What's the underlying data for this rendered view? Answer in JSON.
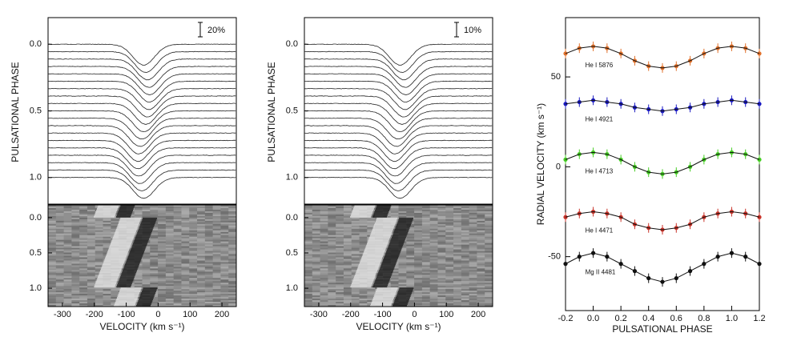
{
  "chart_data": [
    {
      "type": "profiles",
      "scale_label": "20%",
      "ylabel": "PULSATIONAL PHASE",
      "ylim": [
        1.2,
        -0.2
      ],
      "yticks": [
        {
          "value": 0,
          "label": "0.0"
        },
        0.5,
        {
          "value": 1,
          "label": "1.0"
        }
      ],
      "dyn_ylim": [
        1.26,
        -0.18
      ],
      "dyn_yticks": [
        {
          "value": 0,
          "label": "0.0"
        },
        0.5,
        {
          "value": 1,
          "label": "1.0"
        }
      ],
      "xlabel": "VELOCITY (km s⁻¹)",
      "xlim": [
        -345,
        245
      ],
      "xticks": [
        -300,
        -200,
        -100,
        0,
        100,
        200
      ]
    },
    {
      "type": "profiles",
      "scale_label": "10%",
      "ylabel": "PULSATIONAL PHASE",
      "ylim": [
        1.2,
        -0.2
      ],
      "yticks": [
        {
          "value": 0,
          "label": "0.0"
        },
        0.5,
        {
          "value": 1,
          "label": "1.0"
        }
      ],
      "dyn_ylim": [
        1.26,
        -0.18
      ],
      "dyn_yticks": [
        {
          "value": 0,
          "label": "0.0"
        },
        0.5,
        {
          "value": 1,
          "label": "1.0"
        }
      ],
      "xlabel": "VELOCITY (km s⁻¹)",
      "xlim": [
        -345,
        245
      ],
      "xticks": [
        -300,
        -200,
        -100,
        0,
        100,
        200
      ]
    },
    {
      "type": "line",
      "xlabel": "PULSATIONAL PHASE",
      "ylabel": "RADIAL VELOCITY (km s⁻¹)",
      "xlim": [
        -0.2,
        1.2
      ],
      "ylim": [
        -80,
        83
      ],
      "xticks": [
        -0.2,
        {
          "value": 0,
          "label": "0.0"
        },
        0.2,
        0.4,
        0.6,
        0.8,
        {
          "value": 1,
          "label": "1.0"
        },
        1.2
      ],
      "yticks": [
        -50,
        0,
        50
      ],
      "x": [
        -0.2,
        -0.1,
        0,
        0.1,
        0.2,
        0.3,
        0.4,
        0.5,
        0.6,
        0.7,
        0.8,
        0.9,
        1,
        1.1,
        1.2
      ],
      "series": [
        {
          "name": "He I 5876",
          "color": "#e0702a",
          "values": [
            63,
            66,
            67,
            66,
            63,
            59,
            56,
            55,
            56,
            59,
            63,
            66,
            67,
            66,
            63
          ]
        },
        {
          "name": "He I 4921",
          "color": "#1a1ac0",
          "values": [
            35,
            36,
            37,
            36,
            35,
            33,
            32,
            31,
            32,
            33,
            35,
            36,
            37,
            36,
            35
          ]
        },
        {
          "name": "He I 4713",
          "color": "#44cc22",
          "values": [
            4,
            7,
            8,
            7,
            4,
            0,
            -3,
            -4,
            -3,
            0,
            4,
            7,
            8,
            7,
            4
          ]
        },
        {
          "name": "He I 4471",
          "color": "#c83228",
          "values": [
            -28,
            -26,
            -25,
            -26,
            -28,
            -32,
            -34,
            -35,
            -34,
            -32,
            -28,
            -26,
            -25,
            -26,
            -28
          ]
        },
        {
          "name": "Mg II 4481",
          "color": "#111111",
          "values": [
            -54,
            -50,
            -48,
            -50,
            -54,
            -58,
            -62,
            -64,
            -62,
            -58,
            -54,
            -50,
            -48,
            -50,
            -54
          ]
        }
      ]
    }
  ]
}
